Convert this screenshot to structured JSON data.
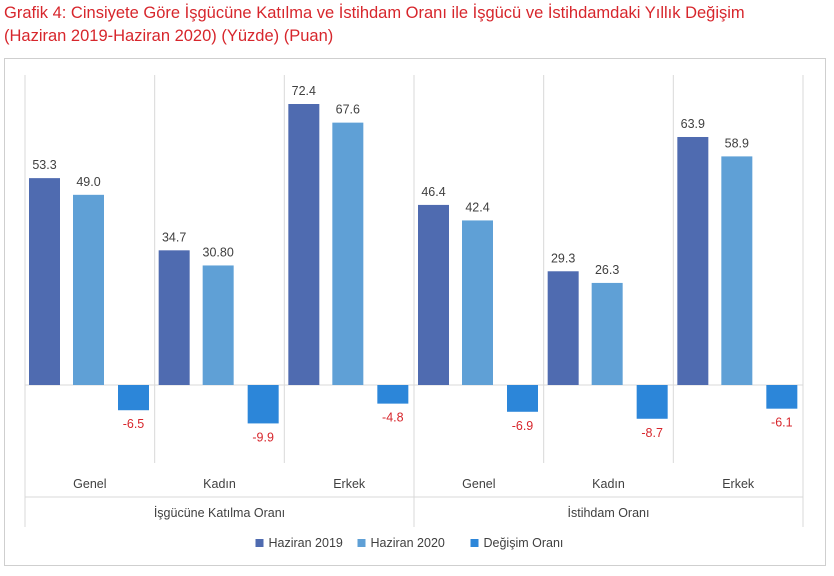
{
  "title": {
    "line1": "Grafik 4: Cinsiyete Göre İşgücüne Katılma ve İstihdam Oranı ile İşgücü ve İstihdamdaki Yıllık Değişim",
    "line2": "(Haziran 2019-Haziran 2020) (Yüzde) (Puan)"
  },
  "chart_data": {
    "type": "bar",
    "title": "Grafik 4: Cinsiyete Göre İşgücüne Katılma ve İstihdam Oranı ile İşgücü ve İstihdamdaki Yıllık Değişim (Haziran 2019-Haziran 2020) (Yüzde) (Puan)",
    "categories": [
      "Genel",
      "Kadın",
      "Erkek",
      "Genel",
      "Kadın",
      "Erkek"
    ],
    "groups": [
      {
        "label": "İşgücüne Katılma Oranı",
        "categories": [
          0,
          1,
          2
        ]
      },
      {
        "label": "İstihdam Oranı",
        "categories": [
          3,
          4,
          5
        ]
      }
    ],
    "series": [
      {
        "name": "Haziran 2019",
        "color": "#4f6bb0",
        "values": [
          53.3,
          34.7,
          72.4,
          46.4,
          29.3,
          63.9
        ],
        "labels": [
          "53.3",
          "34.7",
          "72.4",
          "46.4",
          "29.3",
          "63.9"
        ]
      },
      {
        "name": "Haziran 2020",
        "color": "#5fa0d6",
        "values": [
          49.0,
          30.8,
          67.6,
          42.4,
          26.3,
          58.9
        ],
        "labels": [
          "49.0",
          "30.80",
          "67.6",
          "42.4",
          "26.3",
          "58.9"
        ]
      },
      {
        "name": "Değişim Oranı",
        "color": "#2c86d9",
        "values": [
          -6.5,
          -9.9,
          -4.8,
          -6.9,
          -8.7,
          -6.1
        ],
        "labels": [
          "-6.5",
          "-9.9",
          "-4.8",
          "-6.9",
          "-8.7",
          "-6.1"
        ]
      }
    ],
    "negative_label_color": "#d7262c",
    "positive_label_color": "#404040",
    "xlabel": "",
    "ylabel": "",
    "ylim": [
      -12,
      80
    ],
    "grid": false,
    "legend": "bottom"
  }
}
